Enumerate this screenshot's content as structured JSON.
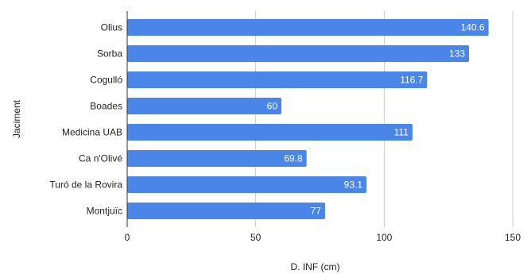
{
  "chart_data": {
    "type": "bar",
    "orientation": "horizontal",
    "title": "",
    "xlabel": "D. INF (cm)",
    "ylabel": "Jaciment",
    "categories": [
      "Olius",
      "Sorba",
      "Cogulló",
      "Boades",
      "Medicina UAB",
      "Ca n'Olivé",
      "Turó de la Rovira",
      "Montjuïc"
    ],
    "values": [
      140.6,
      133,
      116.7,
      60,
      111,
      69.8,
      93.1,
      77
    ],
    "value_labels": [
      "140.6",
      "133",
      "116.7",
      "60",
      "111",
      "69.8",
      "93.1",
      "77"
    ],
    "xlim": [
      0,
      150
    ],
    "xticks": [
      0,
      50,
      100,
      150
    ],
    "xtick_labels": [
      "0",
      "50",
      "100",
      "150"
    ],
    "grid": true,
    "legend": "none",
    "colors": {
      "bar": "#4a86e8",
      "grid": "#cccccc",
      "axis": "#333333"
    }
  }
}
